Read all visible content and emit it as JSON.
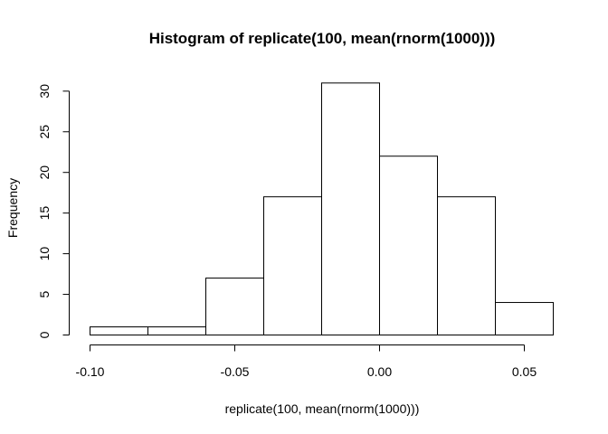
{
  "chart_data": {
    "type": "bar",
    "title": "Histogram of replicate(100, mean(rnorm(1000)))",
    "xlabel": "replicate(100, mean(rnorm(1000)))",
    "ylabel": "Frequency",
    "bins": [
      {
        "from": -0.1,
        "to": -0.08,
        "count": 1
      },
      {
        "from": -0.08,
        "to": -0.06,
        "count": 1
      },
      {
        "from": -0.06,
        "to": -0.04,
        "count": 7
      },
      {
        "from": -0.04,
        "to": -0.02,
        "count": 17
      },
      {
        "from": -0.02,
        "to": 0.0,
        "count": 31
      },
      {
        "from": 0.0,
        "to": 0.02,
        "count": 22
      },
      {
        "from": 0.02,
        "to": 0.04,
        "count": 17
      },
      {
        "from": 0.04,
        "to": 0.06,
        "count": 4
      }
    ],
    "xlim": [
      -0.1,
      0.06
    ],
    "ylim": [
      0,
      31
    ],
    "x_ticks": [
      -0.1,
      -0.05,
      0.0,
      0.05
    ],
    "x_tick_labels": [
      "-0.10",
      "-0.05",
      "0.00",
      "0.05"
    ],
    "y_ticks": [
      0,
      5,
      10,
      15,
      20,
      25,
      30
    ],
    "y_tick_labels": [
      "0",
      "5",
      "10",
      "15",
      "20",
      "25",
      "30"
    ],
    "colors": {
      "bar_fill": "#ffffff",
      "bar_stroke": "#000000"
    }
  }
}
